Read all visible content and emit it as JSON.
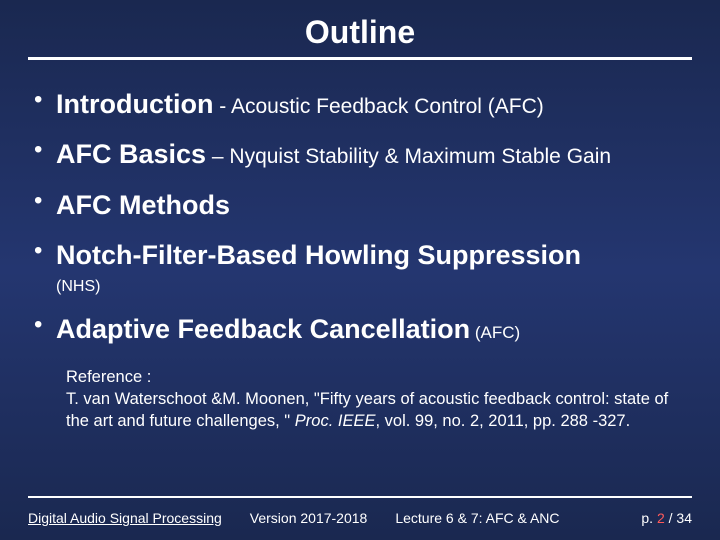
{
  "colors": {
    "background_top": "#1a2850",
    "background_mid": "#243670",
    "background_bottom": "#1a2850",
    "text": "#ffffff",
    "rule": "#ffffff",
    "page_current": "#ff5a5a"
  },
  "typography": {
    "title_fontsize": 32,
    "bullet_main_fontsize": 27,
    "bullet_sub_fontsize": 21,
    "bullet_subsmall_fontsize": 17,
    "note_fontsize": 16,
    "ref_fontsize": 16.5,
    "footer_fontsize": 14,
    "font_family": "Arial"
  },
  "title": "Outline",
  "bullets": [
    {
      "main": "Introduction",
      "sub": " - Acoustic Feedback Control (AFC)",
      "sub_small": false
    },
    {
      "main": "AFC Basics",
      "sub": " – Nyquist Stability & Maximum Stable Gain",
      "sub_small": false
    },
    {
      "main": "AFC Methods",
      "sub": "",
      "sub_small": false
    },
    {
      "main": "Notch-Filter-Based Howling Suppression",
      "sub": "",
      "note": "(NHS)"
    },
    {
      "main": "Adaptive Feedback Cancellation",
      "sub": " (AFC)",
      "sub_small": true
    }
  ],
  "reference": {
    "label": "Reference :",
    "body_pre": "T. van Waterschoot &M. Moonen, \"Fifty years of acoustic feedback control: state of the art and future challenges, \"  ",
    "body_ital": "Proc. IEEE",
    "body_post": ", vol. 99, no. 2, 2011, pp. 288 -327."
  },
  "footer": {
    "course": "Digital Audio Signal Processing",
    "version": "Version 2017-2018",
    "lecture": "Lecture 6 & 7: AFC & ANC",
    "page_prefix": "p. ",
    "page_current": "2",
    "page_sep": " / ",
    "page_total": "34"
  }
}
